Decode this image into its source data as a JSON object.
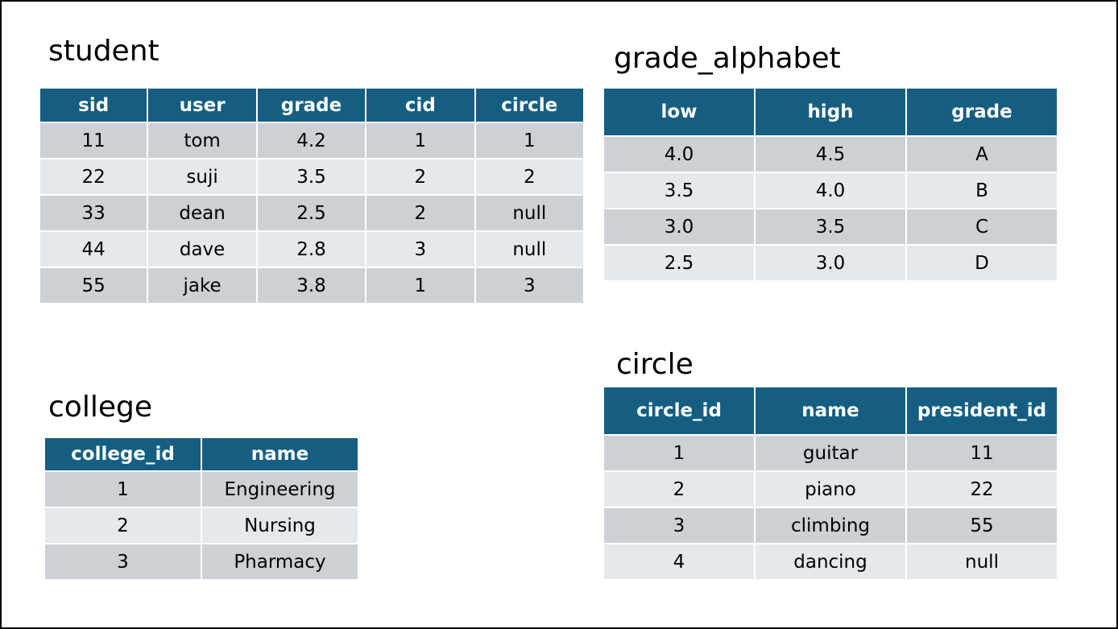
{
  "tables": {
    "student": {
      "title": "student",
      "headers": [
        "sid",
        "user",
        "grade",
        "cid",
        "circle"
      ],
      "rows": [
        [
          "11",
          "tom",
          "4.2",
          "1",
          "1"
        ],
        [
          "22",
          "suji",
          "3.5",
          "2",
          "2"
        ],
        [
          "33",
          "dean",
          "2.5",
          "2",
          "null"
        ],
        [
          "44",
          "dave",
          "2.8",
          "3",
          "null"
        ],
        [
          "55",
          "jake",
          "3.8",
          "1",
          "3"
        ]
      ]
    },
    "grade_alphabet": {
      "title": "grade_alphabet",
      "headers": [
        "low",
        "high",
        "grade"
      ],
      "rows": [
        [
          "4.0",
          "4.5",
          "A"
        ],
        [
          "3.5",
          "4.0",
          "B"
        ],
        [
          "3.0",
          "3.5",
          "C"
        ],
        [
          "2.5",
          "3.0",
          "D"
        ]
      ]
    },
    "college": {
      "title": "college",
      "headers": [
        "college_id",
        "name"
      ],
      "rows": [
        [
          "1",
          "Engineering"
        ],
        [
          "2",
          "Nursing"
        ],
        [
          "3",
          "Pharmacy"
        ]
      ]
    },
    "circle": {
      "title": "circle",
      "headers": [
        "circle_id",
        "name",
        "president_id"
      ],
      "rows": [
        [
          "1",
          "guitar",
          "11"
        ],
        [
          "2",
          "piano",
          "22"
        ],
        [
          "3",
          "climbing",
          "55"
        ],
        [
          "4",
          "dancing",
          "null"
        ]
      ]
    }
  },
  "colors": {
    "header_bg": "#155e82",
    "header_text": "#ffffff",
    "row_odd": "#cdd1d6",
    "row_even": "#e6e9eb"
  }
}
